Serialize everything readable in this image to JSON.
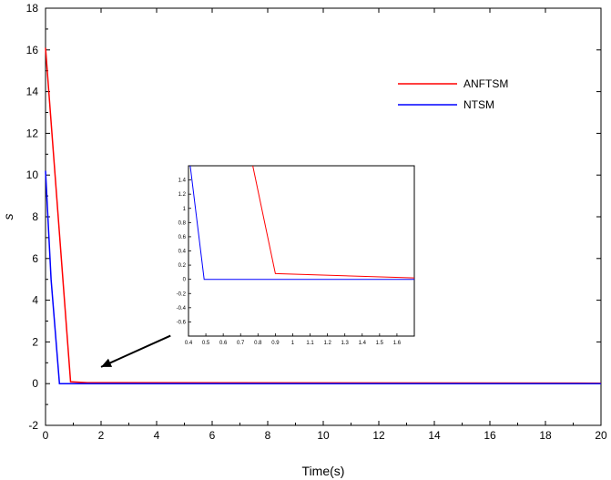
{
  "chart_data": [
    {
      "type": "line",
      "title": "",
      "xlabel": "Time(s)",
      "ylabel": "s",
      "xlim": [
        0,
        20
      ],
      "ylim": [
        -2,
        18
      ],
      "xticks": [
        0,
        2,
        4,
        6,
        8,
        10,
        12,
        14,
        16,
        18,
        20
      ],
      "yticks": [
        -2,
        0,
        2,
        4,
        6,
        8,
        10,
        12,
        14,
        16,
        18
      ],
      "grid": false,
      "legend": "top-right",
      "series": [
        {
          "name": "ANFTSM",
          "color": "#ff0000",
          "x": [
            0,
            0.9,
            1.5,
            20
          ],
          "y": [
            16.1,
            0.09,
            0.05,
            0.02
          ]
        },
        {
          "name": "NTSM",
          "color": "#0000ff",
          "x": [
            0,
            0.2,
            0.5,
            20
          ],
          "y": [
            10.2,
            5.0,
            0.0,
            0.0
          ]
        }
      ],
      "annotations": [
        {
          "type": "arrow",
          "from": [
            4.5,
            2.3
          ],
          "to": [
            2.0,
            0.8
          ]
        }
      ]
    },
    {
      "type": "line",
      "title": "",
      "inset": true,
      "xlabel": "",
      "ylabel": "",
      "xlim": [
        0.4,
        1.7
      ],
      "ylim": [
        -0.8,
        1.6
      ],
      "xticks": [
        0.4,
        0.5,
        0.6,
        0.7,
        0.8,
        0.9,
        1,
        1.1,
        1.2,
        1.3,
        1.4,
        1.5,
        1.6
      ],
      "xtick_labels": [
        "0.4",
        "0.5",
        "0.6",
        "0.7",
        "0.8",
        "0.9",
        "1",
        "1.1",
        "1.2",
        "1.3",
        "1.4",
        "1.5",
        "1.6"
      ],
      "yticks": [
        -0.6,
        -0.4,
        -0.2,
        0,
        0.2,
        0.4,
        0.6,
        0.8,
        1,
        1.2,
        1.4
      ],
      "ytick_labels": [
        "-0.6",
        "-0.4",
        "-0.2",
        "0",
        "0.2",
        "0.4",
        "0.6",
        "0.8",
        "1",
        "1.2",
        "1.4"
      ],
      "grid": false,
      "series": [
        {
          "name": "ANFTSM",
          "color": "#ff0000",
          "x": [
            0.77,
            0.9,
            1.7
          ],
          "y": [
            1.6,
            0.08,
            0.02
          ]
        },
        {
          "name": "NTSM",
          "color": "#0000ff",
          "x": [
            0.41,
            0.49,
            1.7
          ],
          "y": [
            1.6,
            0.0,
            0.0
          ]
        }
      ]
    }
  ]
}
